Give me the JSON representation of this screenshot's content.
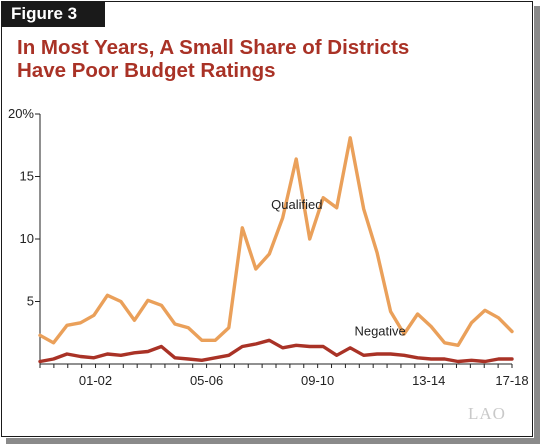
{
  "figure_label": "Figure 3",
  "title_lines": [
    "In Most Years, A Small Share of Districts",
    "Have Poor Budget Ratings"
  ],
  "logo": "LAO",
  "colors": {
    "title": "#a93226",
    "qualified": "#eaa05a",
    "negative": "#a93226",
    "axis": "#222222"
  },
  "chart_data": {
    "type": "line",
    "title": "In Most Years, A Small Share of Districts Have Poor Budget Ratings",
    "xlabel": "",
    "ylabel": "",
    "ylim": [
      0,
      20
    ],
    "yticks": [
      5,
      10,
      15,
      20
    ],
    "ytick_labels": [
      "5",
      "10",
      "15",
      "20%"
    ],
    "x_ticks": [
      "01-02",
      "05-06",
      "09-10",
      "13-14",
      "17-18"
    ],
    "x_domain": [
      0,
      34
    ],
    "x_tick_positions": [
      4,
      12,
      20,
      28,
      34
    ],
    "grid": false,
    "legend": "inline labels",
    "series": [
      {
        "name": "Qualified",
        "label_at": [
          18.5,
          12.4
        ],
        "values": [
          2.3,
          1.7,
          3.1,
          3.3,
          3.9,
          5.5,
          5.0,
          3.5,
          5.1,
          4.7,
          3.2,
          2.9,
          1.9,
          1.9,
          2.9,
          10.9,
          7.6,
          8.8,
          11.7,
          16.4,
          10.0,
          13.3,
          12.5,
          18.1,
          12.4,
          8.9,
          4.2,
          2.4,
          4.0,
          3.0,
          1.7,
          1.5,
          3.3,
          4.3,
          3.7,
          2.6
        ]
      },
      {
        "name": "Negative",
        "label_at": [
          24.5,
          2.3
        ],
        "values": [
          0.2,
          0.4,
          0.8,
          0.6,
          0.5,
          0.8,
          0.7,
          0.9,
          1.0,
          1.4,
          0.5,
          0.4,
          0.3,
          0.5,
          0.7,
          1.4,
          1.6,
          1.9,
          1.3,
          1.5,
          1.4,
          1.4,
          0.7,
          1.3,
          0.7,
          0.8,
          0.8,
          0.7,
          0.5,
          0.4,
          0.4,
          0.2,
          0.3,
          0.2,
          0.4,
          0.4
        ]
      }
    ]
  }
}
